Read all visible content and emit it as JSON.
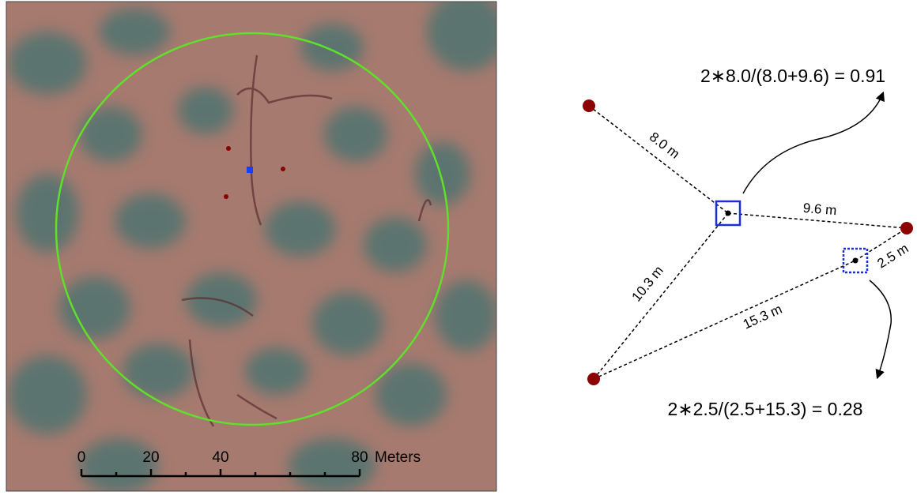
{
  "scale_bar": {
    "labels": [
      "0",
      "20",
      "40",
      "80"
    ],
    "unit": "Meters"
  },
  "diagram": {
    "distances": [
      "8.0 m",
      "9.6 m",
      "10.3 m",
      "15.3 m",
      "2.5 m"
    ],
    "formulas": [
      "2∗8.0/(8.0+9.6) = 0.91",
      "2∗2.5/(2.5+15.3) = 0.28"
    ]
  }
}
